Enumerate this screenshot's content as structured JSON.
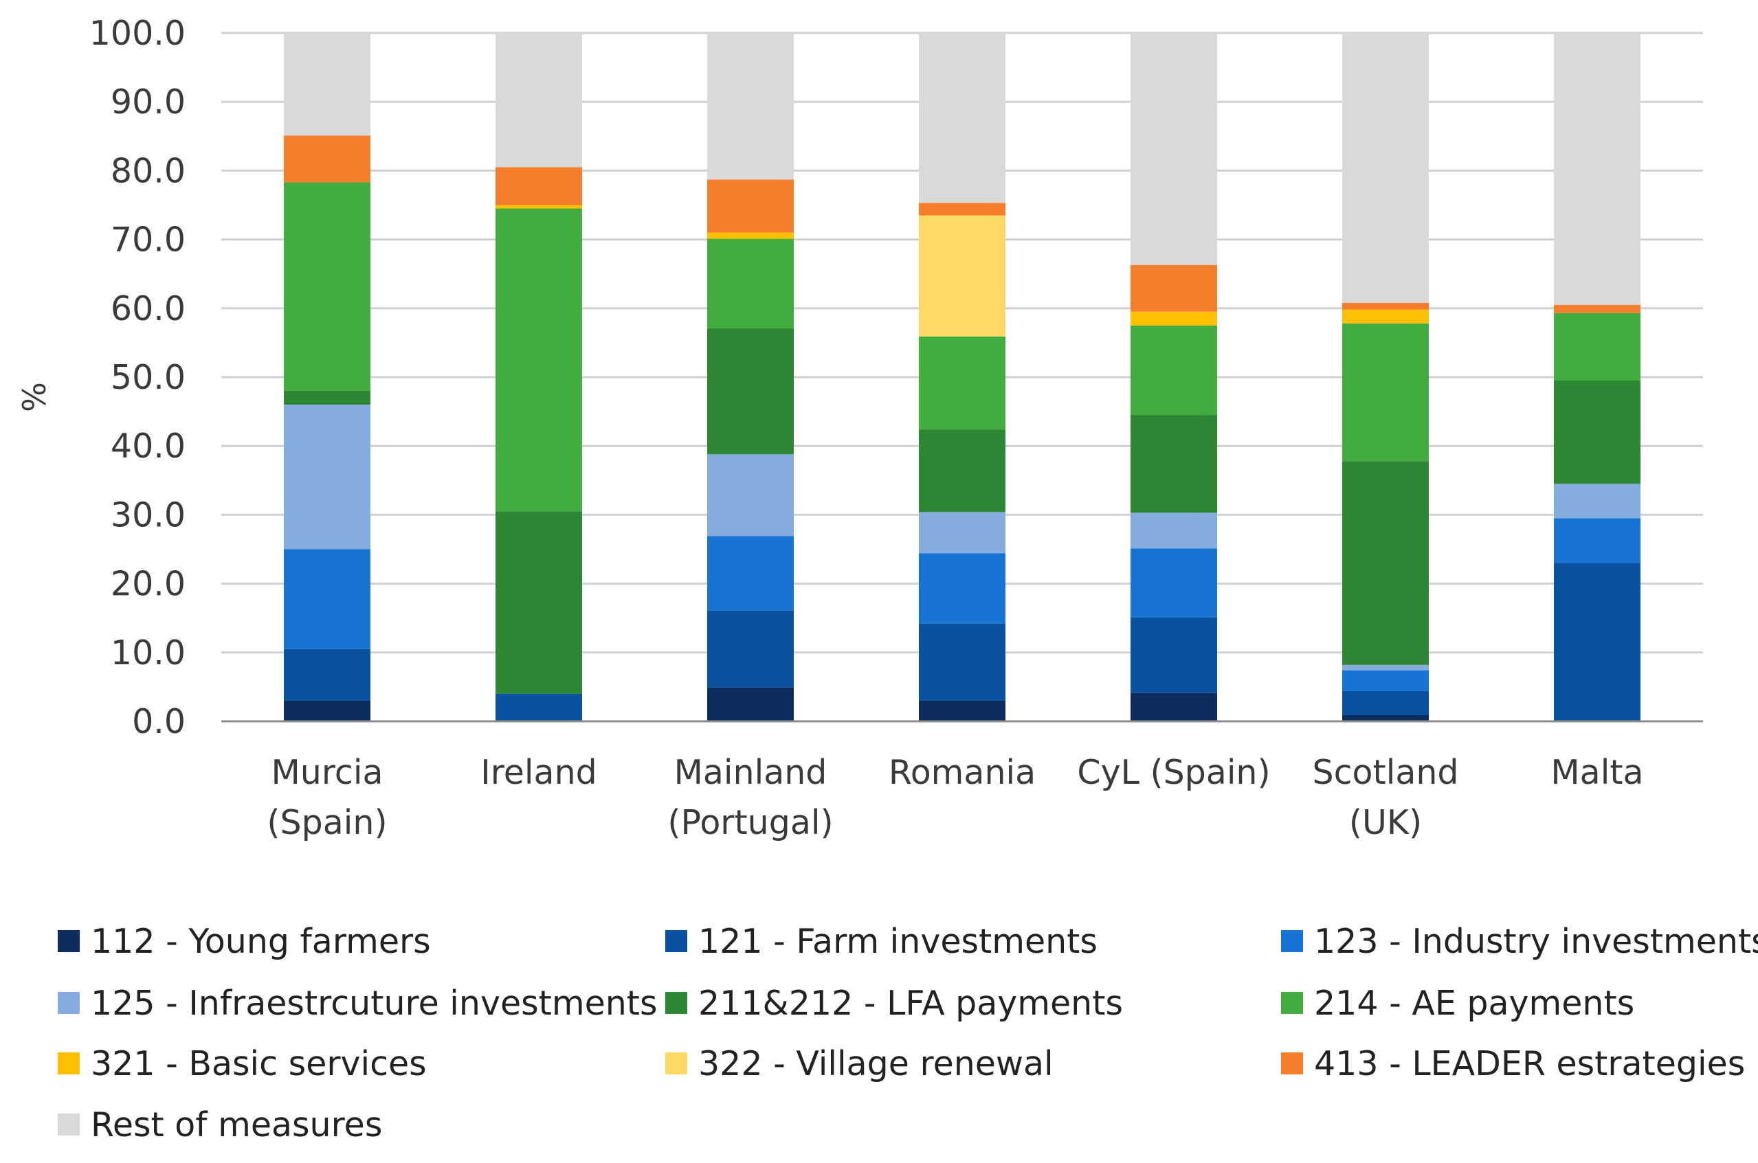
{
  "chart_data": {
    "type": "bar",
    "stacked": true,
    "title": "",
    "xlabel": "",
    "ylabel": "%",
    "ylim": [
      0,
      100
    ],
    "yticks": [
      "0.0",
      "10.0",
      "20.0",
      "30.0",
      "40.0",
      "50.0",
      "60.0",
      "70.0",
      "80.0",
      "90.0",
      "100.0"
    ],
    "grid": true,
    "legend_position": "bottom",
    "categories": [
      [
        "Murcia",
        "(Spain)"
      ],
      [
        "Ireland"
      ],
      [
        "Mainland",
        "(Portugal)"
      ],
      [
        "Romania"
      ],
      [
        "CyL (Spain)"
      ],
      [
        "Scotland",
        "(UK)"
      ],
      [
        "Malta"
      ]
    ],
    "series": [
      {
        "name": "112 - Young farmers",
        "color": "#0d2d5c",
        "values": [
          3.0,
          0.0,
          4.9,
          3.0,
          4.1,
          0.9,
          0.0
        ]
      },
      {
        "name": "121 - Farm investments",
        "color": "#0b51a1",
        "values": [
          7.5,
          4.0,
          11.2,
          11.2,
          11.0,
          3.5,
          23.0
        ]
      },
      {
        "name": "123 - Industry investments",
        "color": "#1874d2",
        "values": [
          14.5,
          0.0,
          10.8,
          10.2,
          10.0,
          3.0,
          6.5
        ]
      },
      {
        "name": "125 - Infraestrcuture investments",
        "color": "#86acdf",
        "values": [
          21.0,
          0.0,
          11.9,
          6.0,
          5.2,
          0.8,
          5.0
        ]
      },
      {
        "name": "211&212 - LFA payments",
        "color": "#2c8633",
        "values": [
          2.0,
          26.5,
          18.3,
          12.0,
          14.2,
          29.6,
          15.0
        ]
      },
      {
        "name": "214 - AE payments",
        "color": "#42ad3e",
        "values": [
          30.3,
          44.0,
          13.0,
          13.5,
          13.0,
          20.0,
          9.8
        ]
      },
      {
        "name": "321 - Basic services",
        "color": "#fec000",
        "values": [
          0.0,
          0.5,
          0.9,
          0.0,
          2.0,
          2.0,
          0.0
        ]
      },
      {
        "name": "322 - Village renewal",
        "color": "#ffd966",
        "values": [
          0.0,
          0.0,
          0.0,
          17.6,
          0.0,
          0.0,
          0.0
        ]
      },
      {
        "name": "413 - LEADER estrategies",
        "color": "#f47e2b",
        "values": [
          6.8,
          5.5,
          7.7,
          1.8,
          6.8,
          1.0,
          1.2
        ]
      },
      {
        "name": "Rest of measures",
        "color": "#d9d9d9",
        "values": [
          14.9,
          19.5,
          21.3,
          24.7,
          33.7,
          39.2,
          39.5
        ]
      }
    ]
  }
}
